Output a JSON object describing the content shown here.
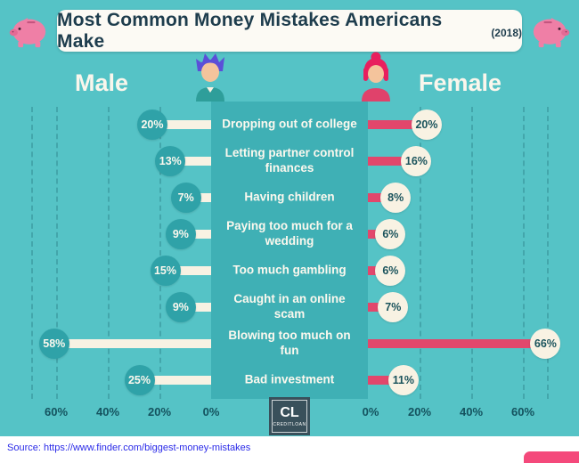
{
  "title": {
    "text": "Most Common Money Mistakes Americans Make",
    "year": "(2018)"
  },
  "headers": {
    "left": "Male",
    "right": "Female"
  },
  "chart_data": {
    "type": "bar",
    "orientation": "diverging-horizontal",
    "categories": [
      "Dropping out of college",
      "Letting partner control finances",
      "Having children",
      "Paying too much for a wedding",
      "Too much gambling",
      "Caught in an online scam",
      "Blowing too much on fun",
      "Bad investment"
    ],
    "series": [
      {
        "name": "Male",
        "values": [
          20,
          13,
          7,
          9,
          15,
          9,
          58,
          25
        ],
        "labels": [
          "20%",
          "13%",
          "7%",
          "9%",
          "15%",
          "9%",
          "58%",
          "25%"
        ]
      },
      {
        "name": "Female",
        "values": [
          20,
          16,
          8,
          6,
          6,
          7,
          66,
          11
        ],
        "labels": [
          "20%",
          "16%",
          "8%",
          "6%",
          "6%",
          "7%",
          "66%",
          "11%"
        ]
      }
    ],
    "x_ticks": [
      "60%",
      "40%",
      "20%",
      "0%",
      "0%",
      "20%",
      "40%",
      "60%"
    ],
    "axis_range_percent": [
      0,
      60
    ],
    "grid": "dashed-vertical"
  },
  "logo": {
    "initials": "CL",
    "name": "CREDITLOAN"
  },
  "source": {
    "text": "Source: https://www.finder.com/biggest-money-mistakes"
  },
  "colors": {
    "background": "#55C3C6",
    "center_band": "#3FB0B5",
    "male_bar": "#F8F2E3",
    "female_bar": "#E2476C",
    "male_bubble": "#2FA2A8",
    "female_bubble": "#F8F2E3",
    "title_text": "#1E3D4D",
    "source_link": "#2A2AE8",
    "piggy_pink": "#EF7FA6"
  }
}
